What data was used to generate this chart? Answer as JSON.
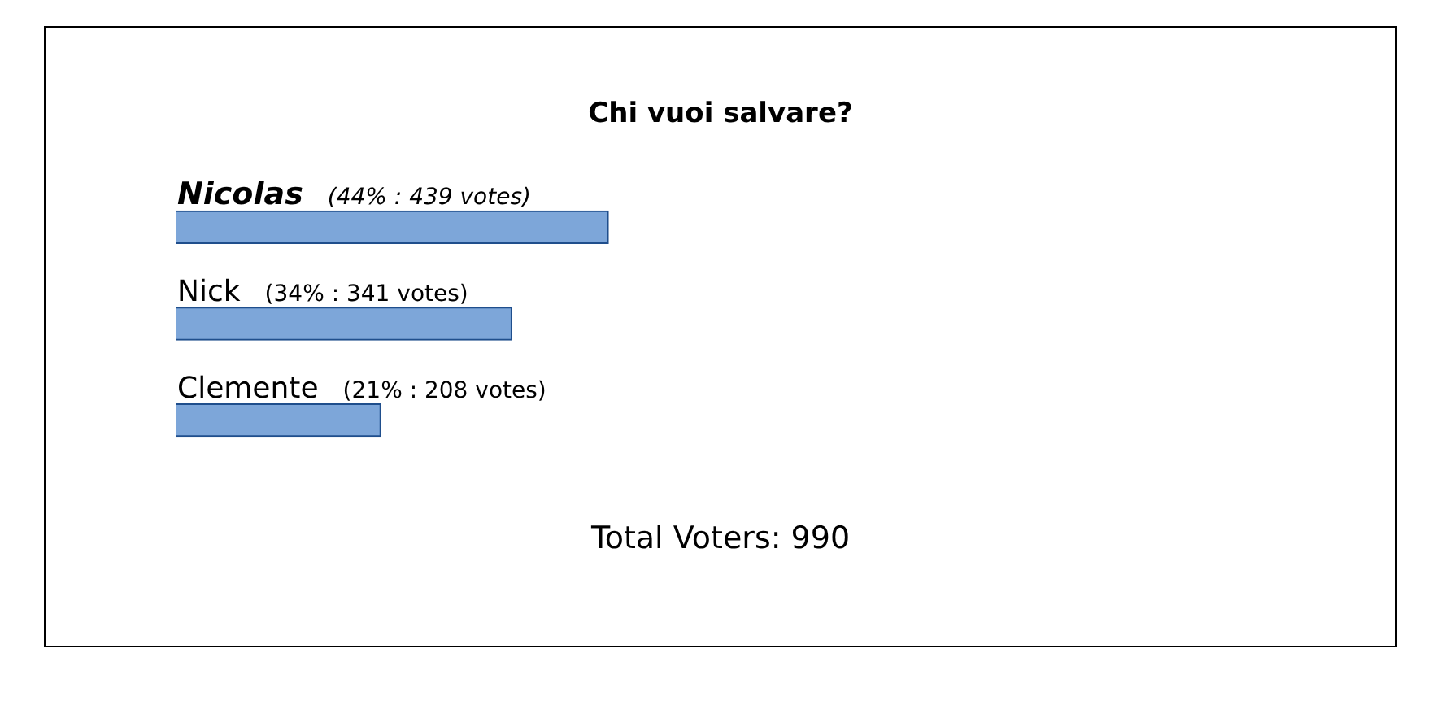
{
  "chart_data": {
    "type": "bar",
    "orientation": "horizontal",
    "title": "Chi vuoi salvare?",
    "categories": [
      "Nicolas",
      "Nick",
      "Clemente"
    ],
    "values": [
      439,
      341,
      208
    ],
    "value_labels": [
      "(44% : 439 votes)",
      "(34% : 341 votes)",
      "(21% : 208 votes)"
    ],
    "color": "#7da6d9",
    "annotations": [
      "Total Voters: 990"
    ],
    "grid": false,
    "legend": false,
    "tick_labels": false
  }
}
